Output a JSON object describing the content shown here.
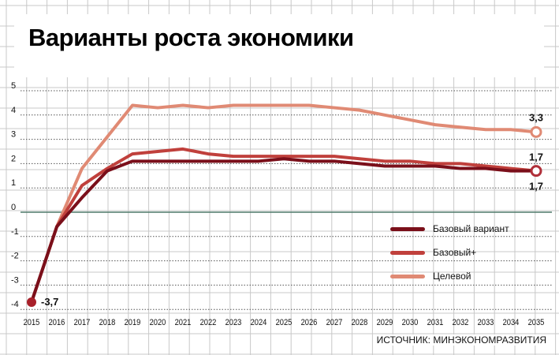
{
  "chart_data": {
    "type": "line",
    "title": "Варианты роста экономики",
    "source": "ИСТОЧНИК: МИНЭКОНОМРАЗВИТИЯ",
    "x": [
      2015,
      2016,
      2017,
      2018,
      2019,
      2020,
      2021,
      2022,
      2023,
      2024,
      2025,
      2026,
      2027,
      2028,
      2029,
      2030,
      2031,
      2032,
      2033,
      2034,
      2035
    ],
    "xlabel": "",
    "ylabel": "",
    "ylim": [
      -4,
      5
    ],
    "yticks": [
      5,
      4,
      3,
      2,
      1,
      0,
      -1,
      -2,
      -3,
      -4
    ],
    "grid": true,
    "legend_position": "bottom-right",
    "series": [
      {
        "name": "Базовый вариант",
        "color": "#7a0f1a",
        "values": [
          -3.7,
          -0.6,
          0.6,
          1.7,
          2.1,
          2.1,
          2.1,
          2.1,
          2.1,
          2.1,
          2.2,
          2.1,
          2.1,
          2.0,
          1.9,
          1.9,
          1.9,
          1.8,
          1.8,
          1.7,
          1.7
        ]
      },
      {
        "name": "Базовый+",
        "color": "#c0403c",
        "values": [
          -3.7,
          -0.6,
          1.1,
          1.8,
          2.4,
          2.5,
          2.6,
          2.4,
          2.3,
          2.3,
          2.3,
          2.3,
          2.3,
          2.2,
          2.1,
          2.1,
          2.0,
          2.0,
          1.9,
          1.8,
          1.7
        ]
      },
      {
        "name": "Целевой",
        "color": "#e08a74",
        "values": [
          -3.7,
          -0.6,
          1.8,
          3.1,
          4.4,
          4.3,
          4.4,
          4.3,
          4.4,
          4.4,
          4.4,
          4.4,
          4.3,
          4.2,
          4.0,
          3.8,
          3.6,
          3.5,
          3.4,
          3.4,
          3.3
        ]
      }
    ],
    "annotations": [
      {
        "text": "-3,7",
        "x": 2015,
        "y": -3.7
      },
      {
        "text": "3,3",
        "x": 2035,
        "y": 3.3
      },
      {
        "text": "1,7",
        "x": 2035,
        "y": 1.7,
        "pos": "above"
      },
      {
        "text": "1,7",
        "x": 2035,
        "y": 1.7,
        "pos": "below"
      }
    ],
    "colors": {
      "grid": "#c8c8c8",
      "zero_line": "#4f7a6a",
      "dotted": "#555555"
    }
  }
}
